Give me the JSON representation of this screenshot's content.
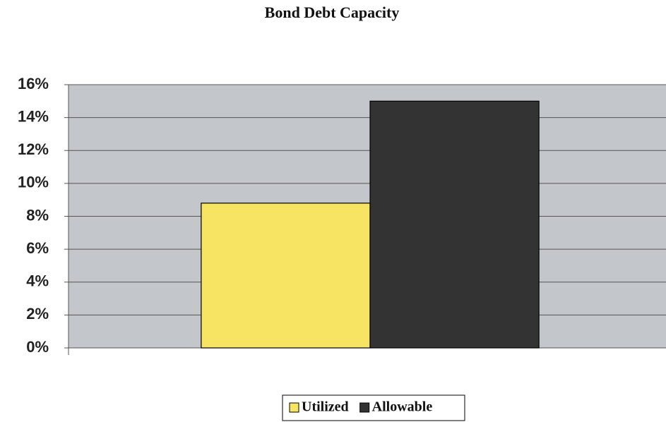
{
  "chart_data": {
    "type": "bar",
    "title": "Bond Debt Capacity",
    "categories": [
      null
    ],
    "series": [
      {
        "name": "Utilized",
        "color": "#f7e463",
        "values": [
          8.8
        ]
      },
      {
        "name": "Allowable",
        "color": "#333333",
        "values": [
          15
        ]
      }
    ],
    "ylim": [
      0,
      16
    ],
    "yticks": [
      {
        "value": 0,
        "label": "0%"
      },
      {
        "value": 2,
        "label": "2%"
      },
      {
        "value": 4,
        "label": "4%"
      },
      {
        "value": 6,
        "label": "6%"
      },
      {
        "value": 8,
        "label": "8%"
      },
      {
        "value": 10,
        "label": "10%"
      },
      {
        "value": 12,
        "label": "12%"
      },
      {
        "value": 14,
        "label": "14%"
      },
      {
        "value": 16,
        "label": "16%"
      }
    ],
    "grid": true,
    "legend": "bottom"
  }
}
